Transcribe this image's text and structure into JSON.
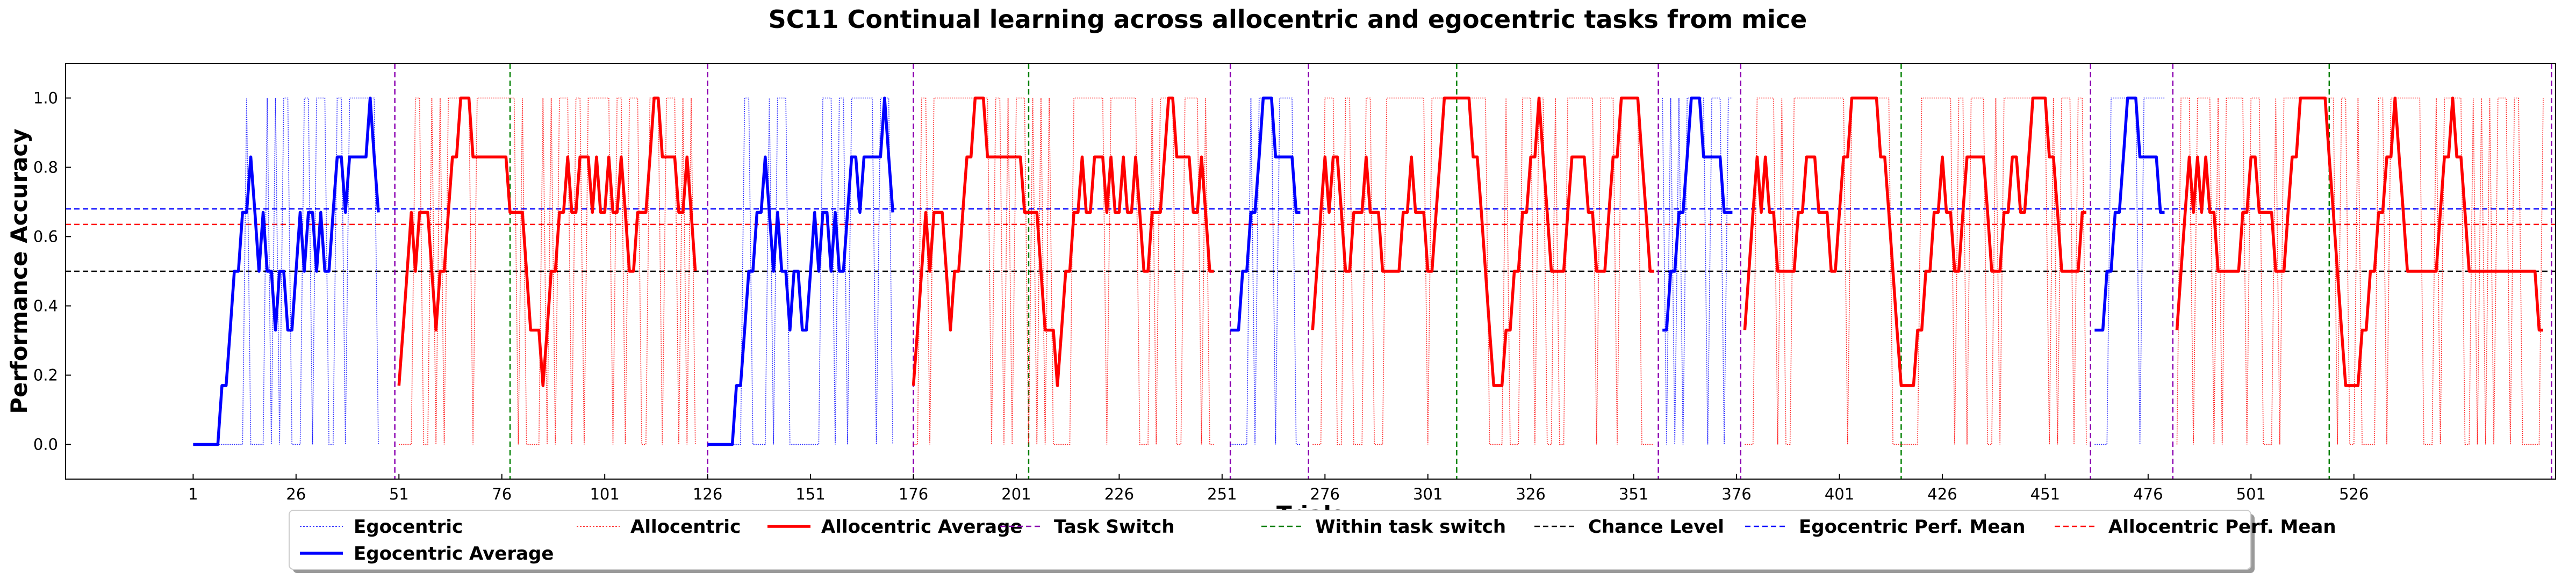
{
  "chart_data": {
    "type": "line",
    "title": "SC11 Continual learning across allocentric and egocentric tasks from mice",
    "xlabel": "Trials",
    "ylabel": "Performance Accuracy",
    "xlim": [
      -30,
      575
    ],
    "ylim": [
      -0.1,
      1.1
    ],
    "xticks": [
      1,
      26,
      51,
      76,
      101,
      126,
      151,
      176,
      201,
      226,
      251,
      276,
      301,
      326,
      351,
      376,
      401,
      426,
      451,
      476,
      501,
      526
    ],
    "yticks": [
      0.0,
      0.2,
      0.4,
      0.6,
      0.8,
      1.0
    ],
    "ytick_labels": [
      "0.0",
      "0.2",
      "0.4",
      "0.6",
      "0.8",
      "1.0"
    ],
    "grid": false,
    "legend_position": "bottom-center",
    "legend": [
      "Egocentric",
      "Allocentric",
      "Allocentric Average",
      "Task Switch",
      "Within task switch",
      "Chance Level",
      "Egocentric Perf. Mean",
      "Allocentric Perf. Mean",
      "Egocentric Average"
    ],
    "colors": {
      "ego": "#0000ff",
      "allo": "#ff0000",
      "task_switch": "#8b00b0",
      "within_switch": "#008000",
      "chance": "#000000"
    },
    "task_switch_x": [
      50,
      126,
      176,
      253,
      272,
      357,
      377,
      462,
      482,
      574
    ],
    "within_task_switch_x": [
      78,
      204,
      308,
      416,
      520
    ],
    "chance_level": 0.5,
    "egocentric_perf_mean": 0.68,
    "allocentric_perf_mean": 0.635,
    "segments": [
      {
        "task": "egocentric",
        "x_start": 1,
        "averages": [
          0,
          0,
          0,
          0,
          0,
          0,
          0,
          0.17,
          0.17,
          0.33,
          0.5,
          0.5,
          0.67,
          0.67,
          0.83,
          0.67,
          0.5,
          0.67,
          0.5,
          0.5,
          0.33,
          0.5,
          0.5,
          0.33,
          0.33,
          0.5,
          0.67,
          0.5,
          0.67,
          0.67,
          0.5,
          0.67,
          0.5,
          0.5,
          0.67,
          0.83,
          0.83,
          0.67,
          0.83,
          0.83,
          0.83,
          0.83,
          0.83,
          1.0,
          0.83,
          0.67
        ]
      },
      {
        "task": "allocentric",
        "x_start": 51,
        "averages": [
          0.17,
          0.33,
          0.5,
          0.67,
          0.5,
          0.67,
          0.67,
          0.67,
          0.5,
          0.33,
          0.5,
          0.5,
          0.67,
          0.83,
          0.83,
          1.0,
          1.0,
          1.0,
          0.83,
          0.83,
          0.83,
          0.83,
          0.83,
          0.83,
          0.83,
          0.83,
          0.83,
          0.67,
          0.67,
          0.67,
          0.67,
          0.5,
          0.33,
          0.33,
          0.33,
          0.17,
          0.33,
          0.5,
          0.5,
          0.67,
          0.67,
          0.83,
          0.67,
          0.67,
          0.83,
          0.83,
          0.83,
          0.67,
          0.83,
          0.67,
          0.67,
          0.83,
          0.67,
          0.67,
          0.83,
          0.67,
          0.5,
          0.5,
          0.67,
          0.67,
          0.67,
          0.83,
          1.0,
          1.0,
          0.83,
          0.83,
          0.83,
          0.83,
          0.67,
          0.67,
          0.83,
          0.67,
          0.5
        ]
      },
      {
        "task": "egocentric",
        "x_start": 126,
        "averages": [
          0,
          0,
          0,
          0,
          0,
          0,
          0,
          0.17,
          0.17,
          0.33,
          0.5,
          0.5,
          0.67,
          0.67,
          0.83,
          0.67,
          0.5,
          0.67,
          0.5,
          0.5,
          0.33,
          0.5,
          0.5,
          0.33,
          0.33,
          0.5,
          0.67,
          0.5,
          0.67,
          0.67,
          0.5,
          0.67,
          0.5,
          0.5,
          0.67,
          0.83,
          0.83,
          0.67,
          0.83,
          0.83,
          0.83,
          0.83,
          0.83,
          1.0,
          0.83,
          0.67
        ]
      },
      {
        "task": "allocentric",
        "x_start": 176,
        "averages": [
          0.17,
          0.33,
          0.5,
          0.67,
          0.5,
          0.67,
          0.67,
          0.67,
          0.5,
          0.33,
          0.5,
          0.5,
          0.67,
          0.83,
          0.83,
          1.0,
          1.0,
          1.0,
          0.83,
          0.83,
          0.83,
          0.83,
          0.83,
          0.83,
          0.83,
          0.83,
          0.83,
          0.67,
          0.67,
          0.67,
          0.67,
          0.5,
          0.33,
          0.33,
          0.33,
          0.17,
          0.33,
          0.5,
          0.5,
          0.67,
          0.67,
          0.83,
          0.67,
          0.67,
          0.83,
          0.83,
          0.83,
          0.67,
          0.83,
          0.67,
          0.67,
          0.83,
          0.67,
          0.67,
          0.83,
          0.67,
          0.5,
          0.5,
          0.67,
          0.67,
          0.67,
          0.83,
          1.0,
          1.0,
          0.83,
          0.83,
          0.83,
          0.83,
          0.67,
          0.67,
          0.83,
          0.67,
          0.5,
          0.5
        ]
      },
      {
        "task": "egocentric",
        "x_start": 253,
        "averages": [
          0.33,
          0.33,
          0.33,
          0.5,
          0.5,
          0.67,
          0.67,
          0.83,
          1.0,
          1.0,
          1.0,
          0.83,
          0.83,
          0.83,
          0.83,
          0.83,
          0.67,
          0.67
        ]
      },
      {
        "task": "allocentric",
        "x_start": 273,
        "averages": [
          0.33,
          0.5,
          0.67,
          0.83,
          0.67,
          0.83,
          0.83,
          0.67,
          0.5,
          0.5,
          0.67,
          0.67,
          0.67,
          0.83,
          0.67,
          0.67,
          0.67,
          0.5,
          0.5,
          0.5,
          0.5,
          0.5,
          0.67,
          0.67,
          0.83,
          0.67,
          0.67,
          0.67,
          0.5,
          0.5,
          0.67,
          0.83,
          1.0,
          1.0,
          1.0,
          1.0,
          1.0,
          1.0,
          1.0,
          0.83,
          0.83,
          0.67,
          0.5,
          0.33,
          0.17,
          0.17,
          0.17,
          0.33,
          0.33,
          0.5,
          0.5,
          0.67,
          0.67,
          0.83,
          0.83,
          1.0,
          0.83,
          0.67,
          0.5,
          0.5,
          0.5,
          0.5,
          0.67,
          0.83,
          0.83,
          0.83,
          0.83,
          0.67,
          0.67,
          0.5,
          0.5,
          0.5,
          0.67,
          0.83,
          0.83,
          1.0,
          1.0,
          1.0,
          1.0,
          1.0,
          0.83,
          0.67,
          0.5,
          0.5
        ]
      },
      {
        "task": "egocentric",
        "x_start": 358,
        "averages": [
          0.33,
          0.33,
          0.5,
          0.5,
          0.67,
          0.67,
          0.83,
          1.0,
          1.0,
          1.0,
          0.83,
          0.83,
          0.83,
          0.83,
          0.83,
          0.67,
          0.67,
          0.67
        ]
      },
      {
        "task": "allocentric",
        "x_start": 378,
        "averages": [
          0.33,
          0.5,
          0.67,
          0.83,
          0.67,
          0.83,
          0.67,
          0.67,
          0.5,
          0.5,
          0.5,
          0.5,
          0.5,
          0.67,
          0.67,
          0.83,
          0.83,
          0.83,
          0.67,
          0.67,
          0.67,
          0.5,
          0.5,
          0.67,
          0.83,
          0.83,
          1.0,
          1.0,
          1.0,
          1.0,
          1.0,
          1.0,
          1.0,
          0.83,
          0.83,
          0.67,
          0.5,
          0.33,
          0.17,
          0.17,
          0.17,
          0.17,
          0.33,
          0.33,
          0.5,
          0.5,
          0.67,
          0.67,
          0.83,
          0.67,
          0.67,
          0.5,
          0.5,
          0.67,
          0.83,
          0.83,
          0.83,
          0.83,
          0.83,
          0.67,
          0.5,
          0.5,
          0.5,
          0.67,
          0.67,
          0.83,
          0.83,
          0.67,
          0.67,
          0.83,
          1.0,
          1.0,
          1.0,
          1.0,
          0.83,
          0.83,
          0.67,
          0.5,
          0.5,
          0.5,
          0.5,
          0.5,
          0.67,
          0.67
        ]
      },
      {
        "task": "egocentric",
        "x_start": 463,
        "averages": [
          0.33,
          0.33,
          0.33,
          0.5,
          0.5,
          0.67,
          0.67,
          0.83,
          1.0,
          1.0,
          1.0,
          0.83,
          0.83,
          0.83,
          0.83,
          0.83,
          0.67,
          0.67
        ]
      },
      {
        "task": "allocentric",
        "x_start": 483,
        "averages": [
          0.33,
          0.5,
          0.67,
          0.83,
          0.67,
          0.83,
          0.67,
          0.83,
          0.67,
          0.67,
          0.5,
          0.5,
          0.5,
          0.5,
          0.5,
          0.5,
          0.67,
          0.67,
          0.83,
          0.83,
          0.67,
          0.67,
          0.67,
          0.67,
          0.5,
          0.5,
          0.5,
          0.67,
          0.83,
          0.83,
          1.0,
          1.0,
          1.0,
          1.0,
          1.0,
          1.0,
          1.0,
          0.83,
          0.67,
          0.5,
          0.33,
          0.17,
          0.17,
          0.17,
          0.17,
          0.33,
          0.33,
          0.5,
          0.5,
          0.67,
          0.67,
          0.83,
          0.83,
          1.0,
          0.83,
          0.67,
          0.5,
          0.5,
          0.5,
          0.5,
          0.5,
          0.5,
          0.5,
          0.5,
          0.67,
          0.83,
          0.83,
          1.0,
          0.83,
          0.83,
          0.67,
          0.5,
          0.5,
          0.5,
          0.5,
          0.5,
          0.5,
          0.5,
          0.5,
          0.5,
          0.5,
          0.5,
          0.5,
          0.5,
          0.5,
          0.5,
          0.5,
          0.5,
          0.33,
          0.33
        ]
      }
    ]
  }
}
